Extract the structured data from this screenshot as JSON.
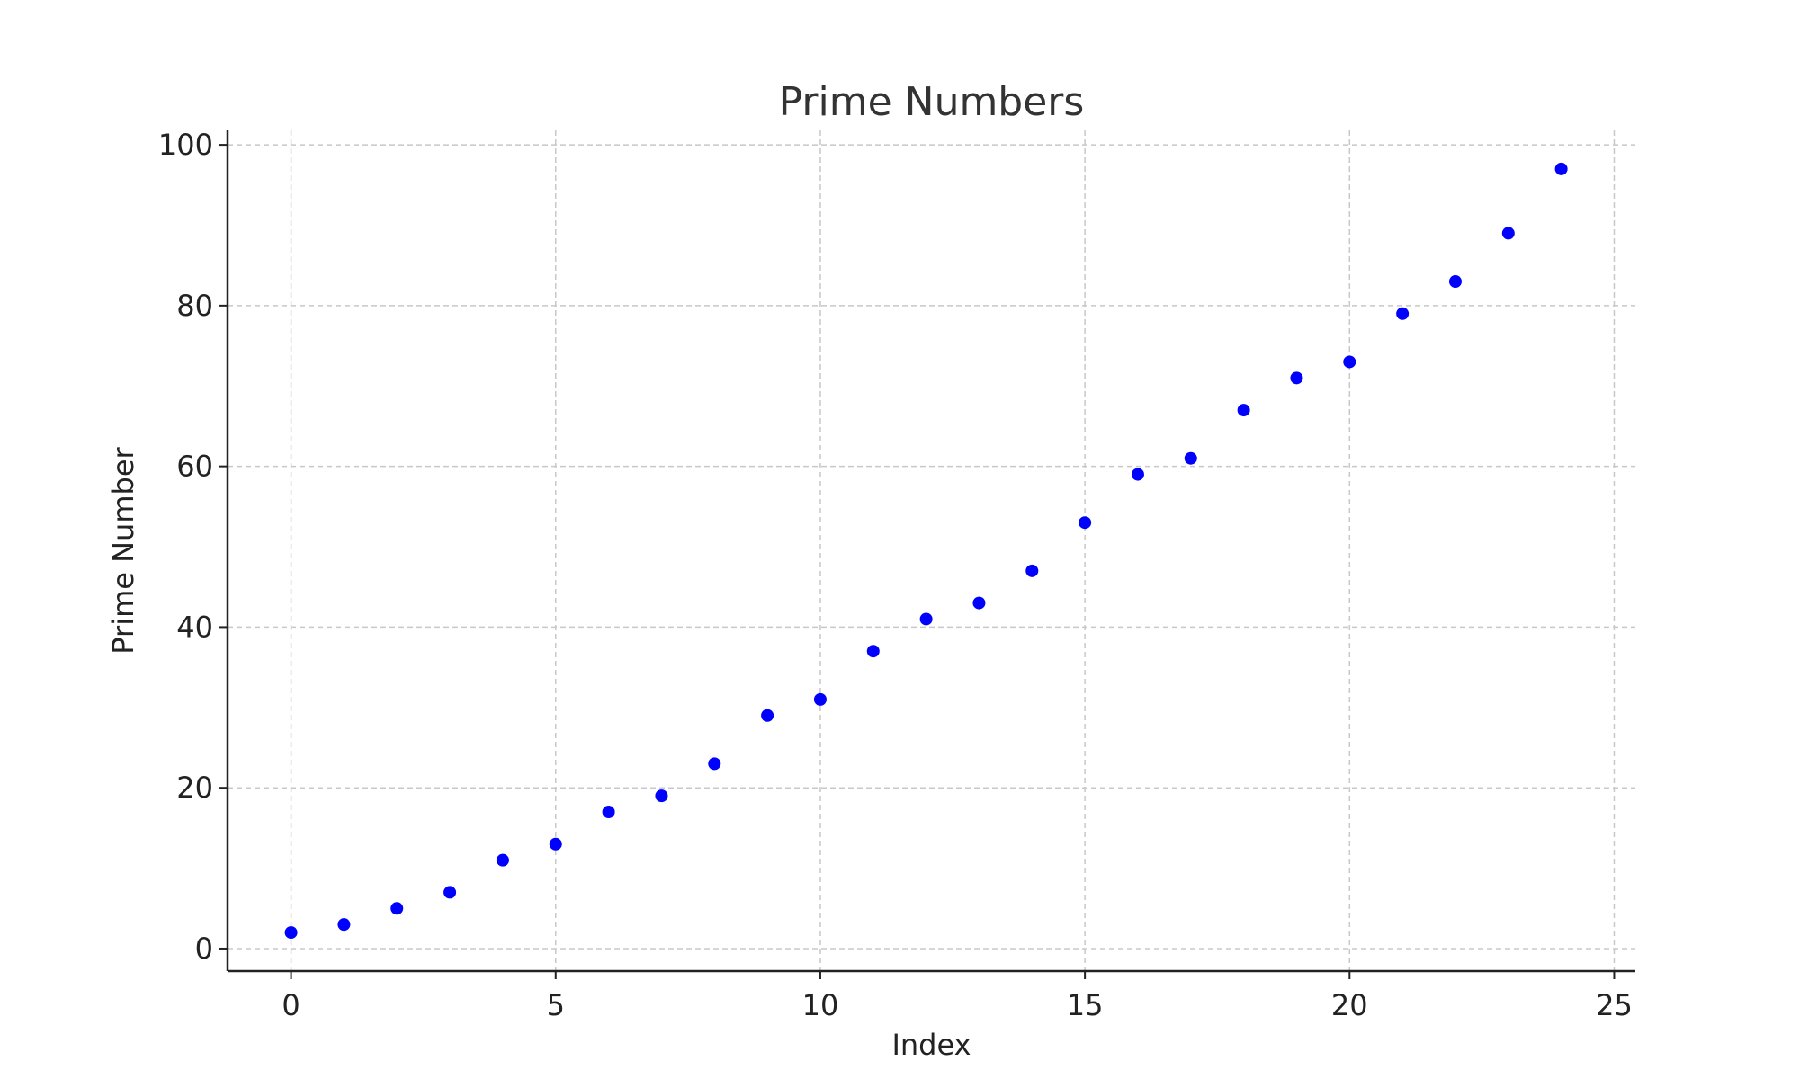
{
  "chart_data": {
    "type": "scatter",
    "title": "Prime Numbers",
    "xlabel": "Index",
    "ylabel": "Prime Number",
    "xlim": [
      -1.2,
      25.4
    ],
    "ylim": [
      -2.8,
      101.8
    ],
    "xticks": [
      0,
      5,
      10,
      15,
      20,
      25
    ],
    "yticks": [
      0,
      20,
      40,
      60,
      80,
      100
    ],
    "grid": true,
    "series": [
      {
        "color": "#0000ff",
        "x": [
          0,
          1,
          2,
          3,
          4,
          5,
          6,
          7,
          8,
          9,
          10,
          11,
          12,
          13,
          14,
          15,
          16,
          17,
          18,
          19,
          20,
          21,
          22,
          23,
          24
        ],
        "y": [
          2,
          3,
          5,
          7,
          11,
          13,
          17,
          19,
          23,
          29,
          31,
          37,
          41,
          43,
          47,
          53,
          59,
          61,
          67,
          71,
          73,
          79,
          83,
          89,
          97
        ]
      }
    ]
  }
}
